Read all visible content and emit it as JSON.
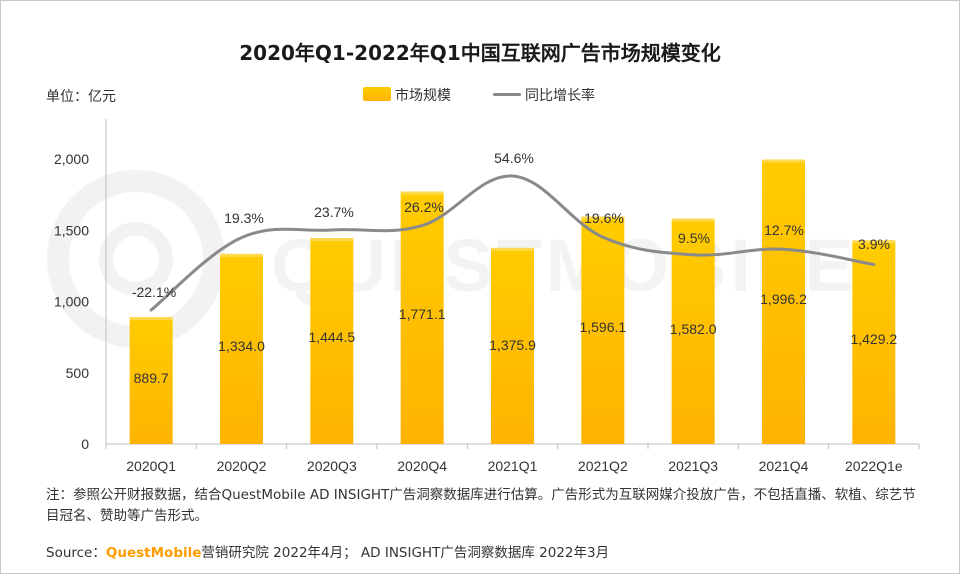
{
  "title": "2020年Q1-2022年Q1中国互联网广告市场规模变化",
  "unit_label": "单位：亿元",
  "watermark_text": "QUESTMOBILE",
  "note": "注：参照公开财报数据，结合QuestMobile AD INSIGHT广告洞察数据库进行估算。广告形式为互联网媒介投放广告，不包括直播、软植、综艺节目冠名、赞助等广告形式。",
  "source": {
    "prefix": "Source：",
    "brand": "QuestMobile",
    "suffix": "营销研究院 2022年4月； AD INSIGHT广告洞察数据库 2022年3月"
  },
  "colors": {
    "bar_top": "#ffcc00",
    "bar_bottom": "#ffb300",
    "line": "#8a8a8a",
    "axis": "#bfbfbf",
    "brand": "#ff9c00"
  },
  "chart_data": {
    "type": "bar",
    "categories": [
      "2020Q1",
      "2020Q2",
      "2020Q3",
      "2020Q4",
      "2021Q1",
      "2021Q2",
      "2021Q3",
      "2021Q4",
      "2022Q1e"
    ],
    "series": [
      {
        "name": "市场规模",
        "type": "bar",
        "axis": "left",
        "values": [
          889.7,
          1334.0,
          1444.5,
          1771.1,
          1375.9,
          1596.1,
          1582.0,
          1996.2,
          1429.2
        ],
        "labels": [
          "889.7",
          "1,334.0",
          "1,444.5",
          "1,771.1",
          "1,375.9",
          "1,596.1",
          "1,582.0",
          "1,996.2",
          "1,429.2"
        ]
      },
      {
        "name": "同比增长率",
        "type": "line",
        "axis": "right-hidden",
        "values": [
          -22.1,
          19.3,
          23.7,
          26.2,
          54.6,
          19.6,
          9.5,
          12.7,
          3.9
        ],
        "labels": [
          "-22.1%",
          "19.3%",
          "23.7%",
          "26.2%",
          "54.6%",
          "19.6%",
          "9.5%",
          "12.7%",
          "3.9%"
        ]
      }
    ],
    "yticks": [
      "0",
      "500",
      "1,000",
      "1,500",
      "2,000"
    ],
    "ytick_values": [
      0,
      500,
      1000,
      1500,
      2000
    ],
    "ylim": [
      0,
      2200
    ],
    "legend_position": "top-center",
    "grid": false
  }
}
